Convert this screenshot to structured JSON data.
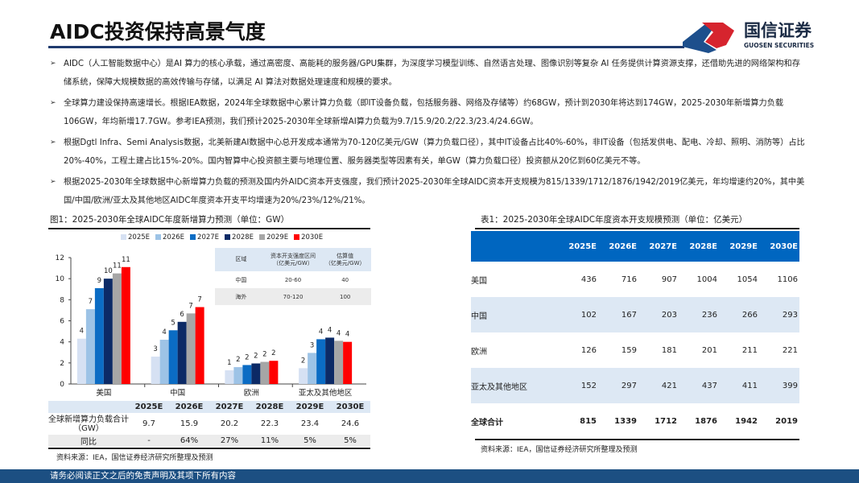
{
  "header": {
    "title": "AIDC投资保持高景气度",
    "logo_cn": "国信证券",
    "logo_en": "GUOSEN SECURITIES"
  },
  "bullets": [
    "AIDC（人工智能数据中心）是AI 算力的核心承载，通过高密度、高能耗的服务器/GPU集群，为深度学习模型训练、自然语言处理、图像识别等复杂 AI 任务提供计算资源支撑，还借助先进的网络架构和存储系统，保障大规模数据的高效传输与存储，以满足 AI 算法对数据处理速度和规模的要求。",
    "全球算力建设保持高速增长。根据IEA数据，2024年全球数据中心累计算力负载（即IT设备负载，包括服务器、网络及存储等）约68GW，预计到2030年将达到174GW，2025-2030年新增算力负载106GW，年均新增17.7GW。参考IEA预测，我们预计2025-2030年全球新增AI算力负载为9.7/15.9/20.2/22.3/23.4/24.6GW。",
    "根据Dgtl Infra、Semi Analysis数据，北美新建AI数据中心总开发成本通常为70-120亿美元/GW（算力负载口径），其中IT设备占比40%-60%，非IT设备（包括发供电、配电、冷却、照明、消防等）占比20%-40%，工程土建占比15%-20%。国内智算中心投资额主要与地理位置、服务器类型等因素有关，单GW（算力负载口径）投资额从20亿到60亿美元不等。",
    "根据2025-2030年全球数据中心新增算力负载的预测及国内外AIDC资本开支强度，我们预计2025-2030年全球AIDC资本开支规模为815/1339/1712/1876/1942/2019亿美元，年均增速约20%，其中美国/中国/欧洲/亚太及其他地区AIDC年度资本开支平均增速为20%/23%/12%/21%。"
  ],
  "figure1": {
    "title": "图1：2025-2030年全球AIDC年度新增算力预测（单位：GW）",
    "source": "资料来源：IEA，国信证券经济研究所整理及预测"
  },
  "chart_data": {
    "type": "bar",
    "categories": [
      "美国",
      "中国",
      "欧洲",
      "亚太及其他地区"
    ],
    "series": [
      {
        "name": "2025E",
        "color": "#d6e1f3",
        "values": [
          4.3,
          2.6,
          1.3,
          1.5
        ],
        "labels": [
          "4",
          "3",
          "1",
          "2"
        ]
      },
      {
        "name": "2026E",
        "color": "#9dc3e6",
        "values": [
          7.1,
          4.2,
          1.6,
          2.95
        ],
        "labels": [
          "7",
          "4",
          "2",
          "3"
        ]
      },
      {
        "name": "2027E",
        "color": "#0b6cc4",
        "values": [
          9.1,
          5.1,
          1.8,
          4.25
        ],
        "labels": [
          "9",
          "5",
          "2",
          "4"
        ]
      },
      {
        "name": "2028E",
        "color": "#0c2a66",
        "values": [
          10.0,
          5.9,
          1.95,
          4.4
        ],
        "labels": [
          "10",
          "6",
          "2",
          "4"
        ]
      },
      {
        "name": "2029E",
        "color": "#a6a6a6",
        "values": [
          10.5,
          6.7,
          2.1,
          4.1
        ],
        "labels": [
          "11",
          "7",
          "2",
          "4"
        ]
      },
      {
        "name": "2030E",
        "color": "#ff0000",
        "values": [
          11.1,
          7.3,
          2.2,
          4.0
        ],
        "labels": [
          "11",
          "7",
          "2",
          "4"
        ]
      }
    ],
    "ylim": [
      0,
      12
    ],
    "yticks": [
      "0",
      "2",
      "4",
      "6",
      "8",
      "10",
      "12"
    ],
    "grid": false,
    "legend": "top"
  },
  "inset_table": {
    "headers": [
      "区域",
      "资本开支强度区间\n（亿美元/GW）",
      "估算值\n（亿美元/GW）"
    ],
    "rows": [
      [
        "中国",
        "20-60",
        "40"
      ],
      [
        "海外",
        "70-120",
        "100"
      ]
    ]
  },
  "bottom_table": {
    "headers": [
      "",
      "2025E",
      "2026E",
      "2027E",
      "2028E",
      "2029E",
      "2030E"
    ],
    "rows": [
      [
        "全球新增算力负载合计（GW）",
        "9.7",
        "15.9",
        "20.2",
        "22.3",
        "23.4",
        "24.6"
      ],
      [
        "同比",
        "-",
        "64%",
        "27%",
        "11%",
        "5%",
        "5%"
      ]
    ]
  },
  "table1": {
    "title": "表1：2025-2030年全球AIDC年度资本开支规模预测（单位：亿美元）",
    "source": "资料来源：IEA，国信证券经济研究所整理及预测",
    "headers": [
      "",
      "2025E",
      "2026E",
      "2027E",
      "2028E",
      "2029E",
      "2030E"
    ],
    "rows": [
      [
        "美国",
        "436",
        "716",
        "907",
        "1004",
        "1054",
        "1106"
      ],
      [
        "中国",
        "102",
        "167",
        "203",
        "236",
        "266",
        "293"
      ],
      [
        "欧洲",
        "126",
        "159",
        "181",
        "201",
        "211",
        "221"
      ],
      [
        "亚太及其他地区",
        "152",
        "297",
        "421",
        "437",
        "411",
        "399"
      ],
      [
        "全球合计",
        "815",
        "1339",
        "1712",
        "1876",
        "1942",
        "2019"
      ]
    ]
  },
  "footer": {
    "text": "请务必阅读正文之后的免责声明及其项下所有内容"
  },
  "colors": {
    "header_blue": "#0066c0",
    "light_row": "#dde8f4",
    "footer": "#1c4f82"
  }
}
